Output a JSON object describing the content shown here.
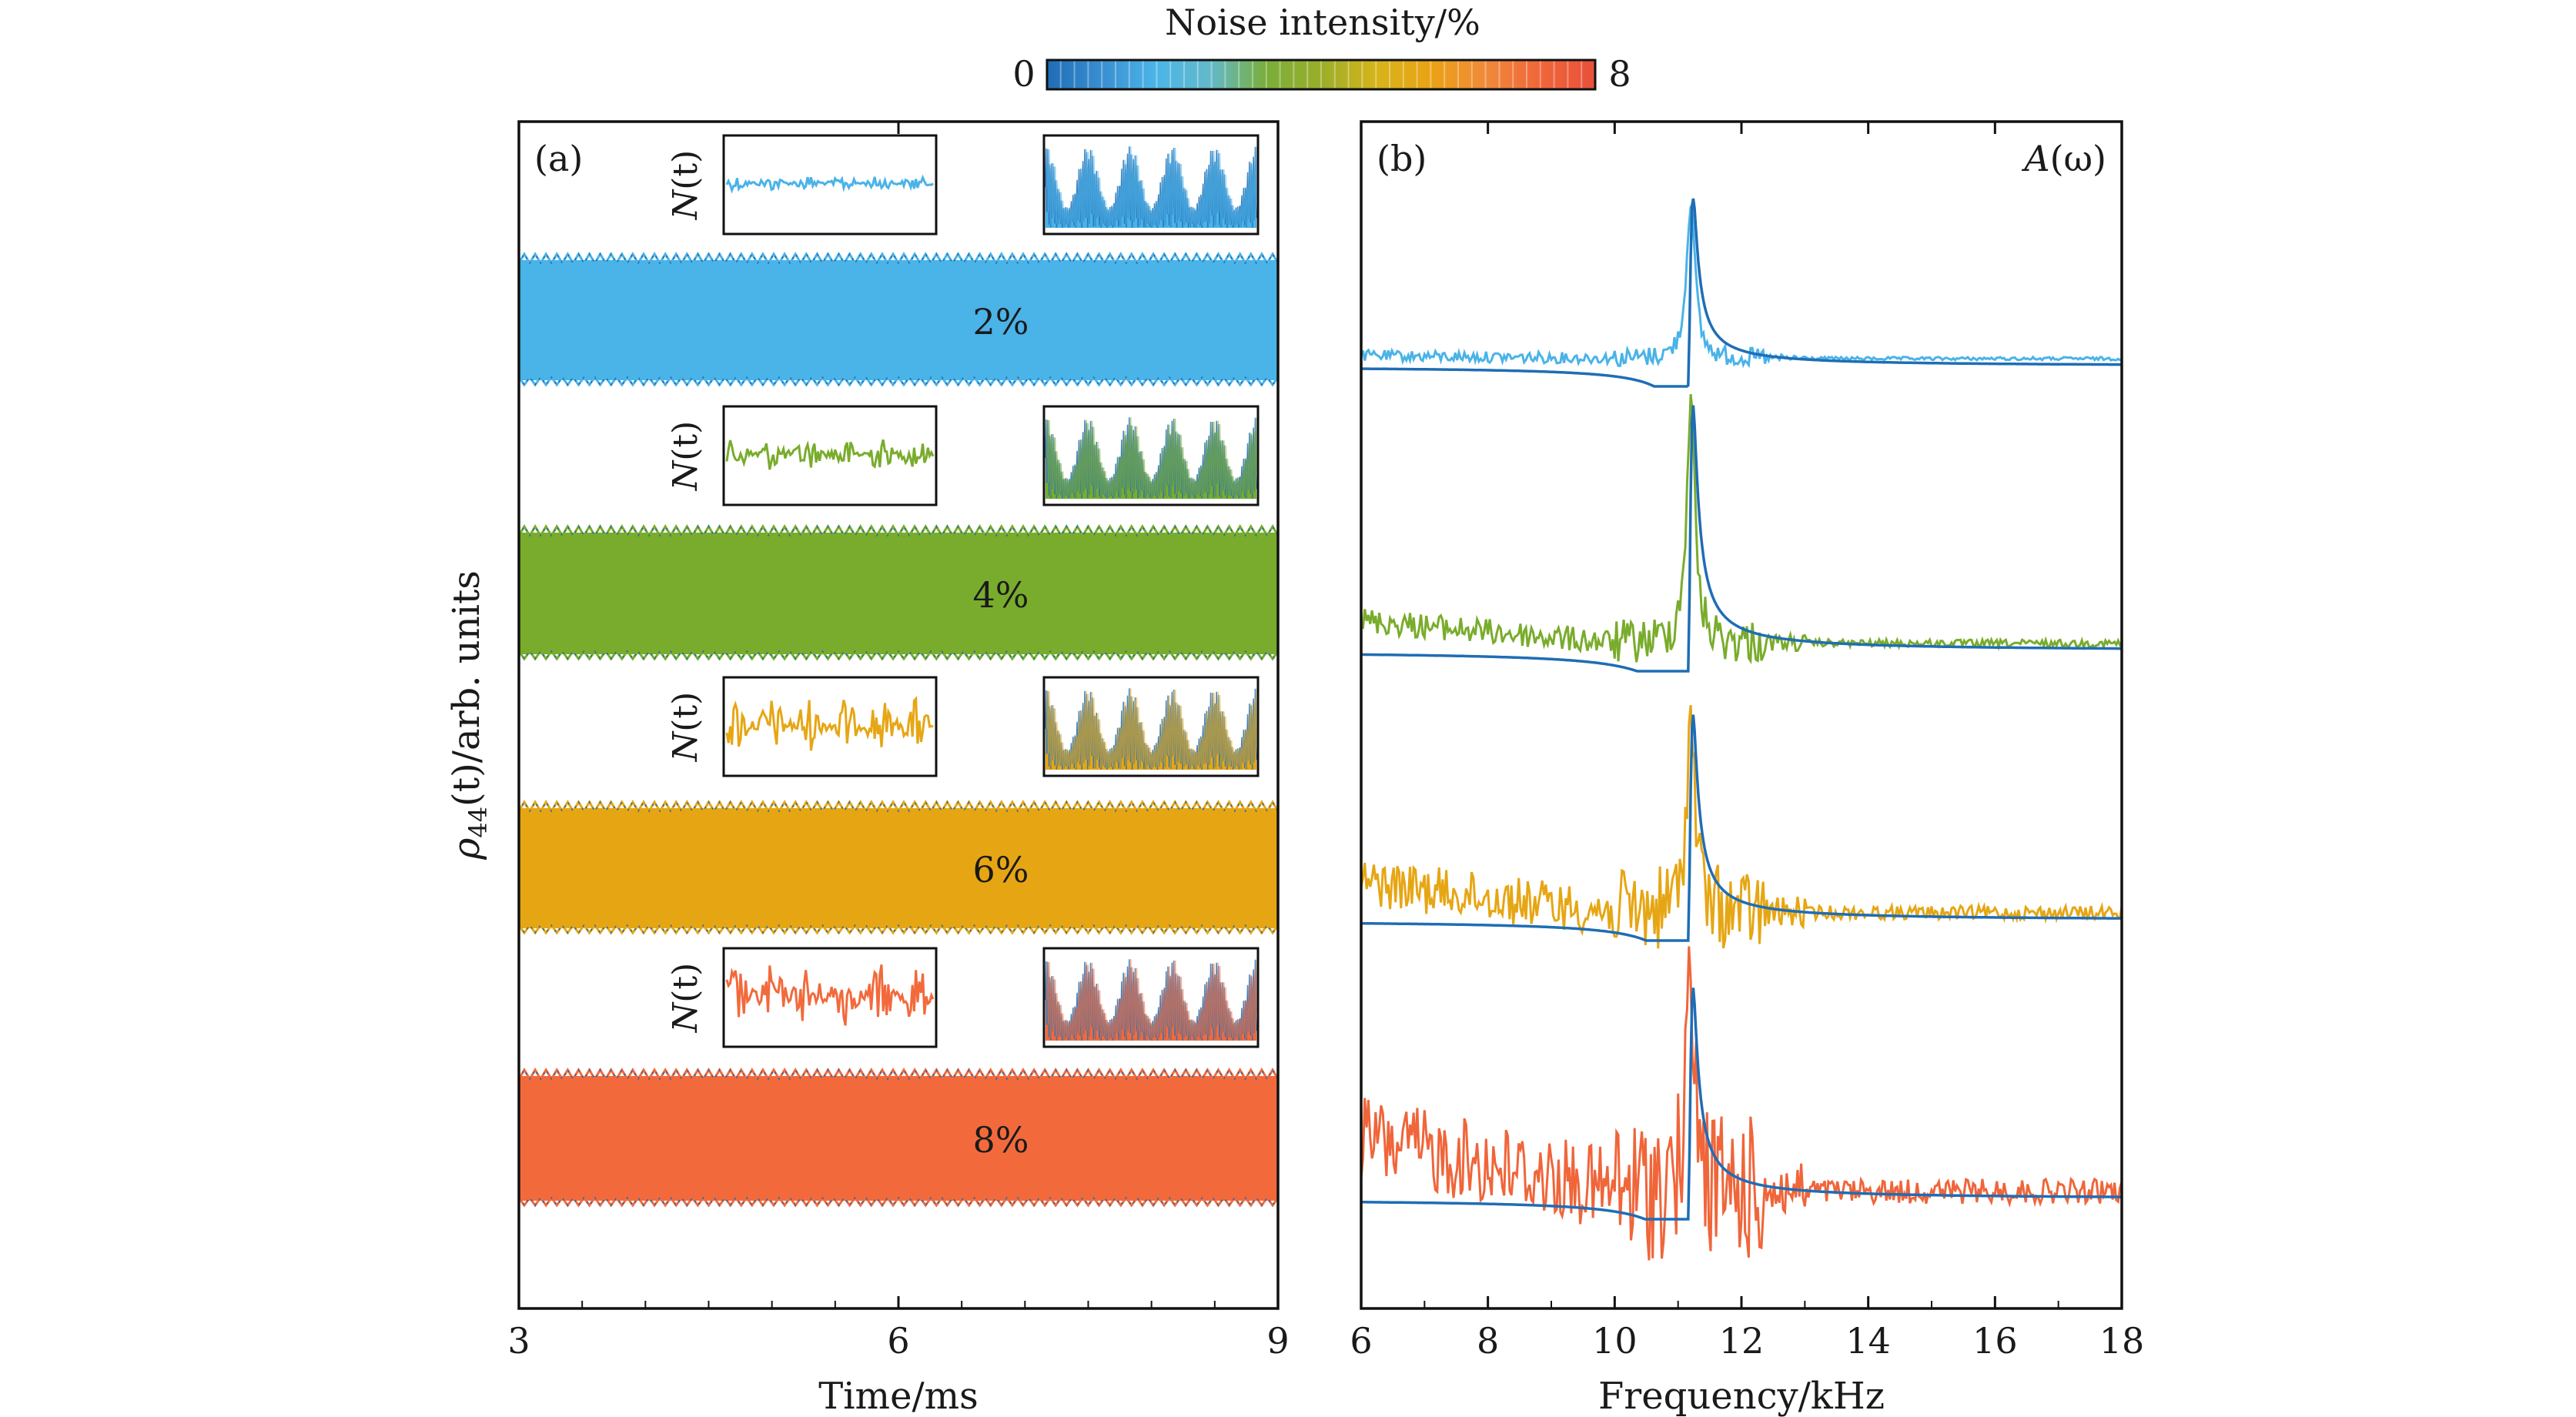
{
  "colorbar": {
    "title": "Noise intensity/%",
    "min_label": "0",
    "max_label": "8",
    "range": [
      0,
      8
    ],
    "colors": [
      "#1f6db5",
      "#3a8fd0",
      "#4cb5e8",
      "#63b9c8",
      "#7aae3a",
      "#9aae2a",
      "#d6b41a",
      "#eaa314",
      "#f08a3a",
      "#f0663a",
      "#e8503a"
    ]
  },
  "colors": {
    "noiseless": "#1f6db5",
    "n2": "#4ab3e8",
    "n4": "#79ac2c",
    "n6": "#e6a614",
    "n8": "#f26a3c",
    "n8_spectrum": "#f0653a"
  },
  "chart_data": [
    {
      "type": "line",
      "panel_label": "(a)",
      "xlabel": "Time/ms",
      "ylabel": "ρ44(t)/arb. units",
      "ylabel_main": "ρ",
      "ylabel_sub": "44",
      "ylabel_rest": "(t)/arb. units",
      "xlim": [
        3,
        9
      ],
      "x_ticks": [
        "3",
        "6",
        "9"
      ],
      "y_ticks_shown": false,
      "series": [
        {
          "noise_percent": 2,
          "label": "2%"
        },
        {
          "noise_percent": 4,
          "label": "4%"
        },
        {
          "noise_percent": 6,
          "label": "6%"
        },
        {
          "noise_percent": 8,
          "label": "8%"
        }
      ],
      "inset_noise_label": "N(t)",
      "inset_noise_label_main": "N",
      "inset_noise_label_rest": "(t)"
    },
    {
      "type": "line",
      "panel_label": "(b)",
      "corner_label": "A(ω)",
      "corner_label_main": "A",
      "corner_label_rest": "(ω)",
      "xlabel": "Frequency/kHz",
      "xlim": [
        6,
        18
      ],
      "x_ticks": [
        "6",
        "8",
        "10",
        "12",
        "14",
        "16",
        "18"
      ],
      "peak_frequency_khz": 11.2,
      "y_ticks_shown": false,
      "series_noise_percent": [
        2,
        4,
        6,
        8
      ]
    }
  ]
}
